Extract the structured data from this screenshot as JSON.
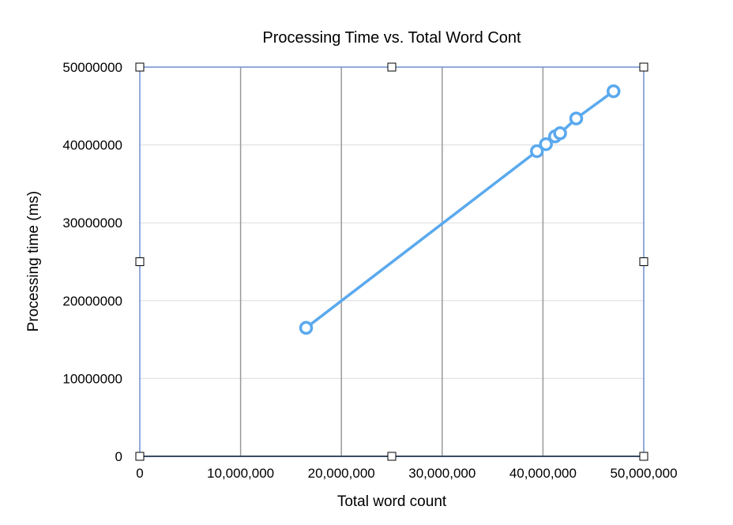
{
  "chart_data": {
    "type": "scatter",
    "title": "Processing Time vs. Total Word Cont",
    "xlabel": "Total word count",
    "ylabel": "Processing time (ms)",
    "xlim": [
      0,
      50000000
    ],
    "ylim": [
      0,
      50000000
    ],
    "x_ticks": [
      0,
      10000000,
      20000000,
      30000000,
      40000000,
      50000000
    ],
    "x_tick_labels": [
      "0",
      "10,000,000",
      "20,000,000",
      "30,000,000",
      "40,000,000",
      "50,000,000"
    ],
    "y_ticks": [
      0,
      10000000,
      20000000,
      30000000,
      40000000,
      50000000
    ],
    "y_tick_labels": [
      "0",
      "10000000",
      "20000000",
      "30000000",
      "40000000",
      "50000000"
    ],
    "grid": "vertical and horizontal",
    "legend": "none",
    "series": [
      {
        "color": "#5aa9ee",
        "marker": "hollow-circle",
        "line": true,
        "points": [
          {
            "x": 16500000,
            "y": 16500000
          },
          {
            "x": 39400000,
            "y": 39200000
          },
          {
            "x": 40300000,
            "y": 40100000
          },
          {
            "x": 41200000,
            "y": 41100000
          },
          {
            "x": 41700000,
            "y": 41500000
          },
          {
            "x": 43300000,
            "y": 43400000
          },
          {
            "x": 47000000,
            "y": 46900000
          }
        ]
      }
    ],
    "colors": {
      "frame": "#6f8fd0",
      "grid_major": "#999999",
      "grid_minor": "#dcdcdc",
      "series": "#5aa9ee"
    }
  }
}
